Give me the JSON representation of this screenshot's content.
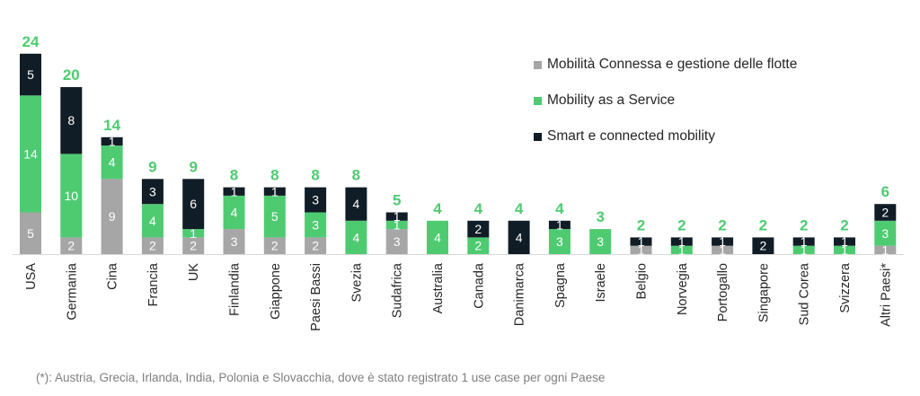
{
  "chart_data": {
    "type": "bar",
    "stacked": true,
    "categories": [
      "USA",
      "Germania",
      "Cina",
      "Francia",
      "UK",
      "Finlandia",
      "Giappone",
      "Paesi Bassi",
      "Svezia",
      "Sudafrica",
      "Australia",
      "Canada",
      "Danimarca",
      "Spagna",
      "Israele",
      "Belgio",
      "Norvegia",
      "Portogallo",
      "Singapore",
      "Sud Corea",
      "Svizzera",
      "Altri Paesi*"
    ],
    "series": [
      {
        "name": "Mobilità Connessa e gestione delle flotte",
        "color": "#a6a6a6",
        "values": [
          5,
          2,
          9,
          2,
          2,
          3,
          2,
          2,
          0,
          3,
          0,
          0,
          0,
          0,
          0,
          1,
          0,
          1,
          0,
          0,
          0,
          1
        ]
      },
      {
        "name": "Mobility as a Service",
        "color": "#4ecb71",
        "values": [
          14,
          10,
          4,
          4,
          1,
          4,
          5,
          3,
          4,
          1,
          4,
          2,
          0,
          3,
          3,
          0,
          1,
          0,
          0,
          1,
          1,
          3
        ]
      },
      {
        "name": "Smart e connected mobility",
        "color": "#111d26",
        "values": [
          5,
          8,
          1,
          3,
          6,
          1,
          1,
          3,
          4,
          1,
          0,
          2,
          4,
          1,
          0,
          1,
          1,
          1,
          2,
          1,
          1,
          2
        ]
      }
    ],
    "totals": [
      24,
      20,
      14,
      9,
      9,
      8,
      8,
      8,
      8,
      5,
      4,
      4,
      4,
      4,
      3,
      2,
      2,
      2,
      2,
      2,
      2,
      6
    ],
    "total_color": "#4ecb71",
    "ylim": [
      0,
      24
    ],
    "grid": false,
    "legend_position": "top-right"
  },
  "footnote": "(*): Austria, Grecia, Irlanda, India, Polonia e Slovacchia, dove è stato registrato 1 use case per ogni Paese"
}
